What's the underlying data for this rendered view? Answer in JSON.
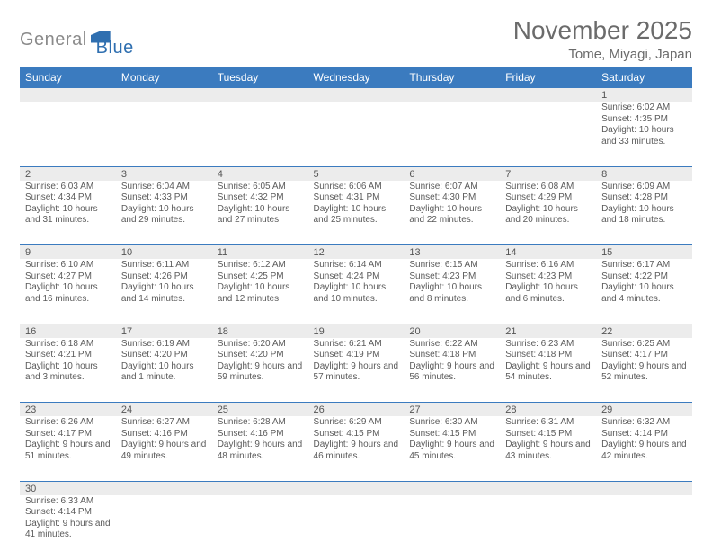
{
  "colors": {
    "accent": "#3b7bbf",
    "header_bg": "#3b7bbf",
    "header_text": "#ffffff",
    "row_alt": "#ececec",
    "title": "#6b6b6b",
    "text": "#333333"
  },
  "logo": {
    "part1": "General",
    "part2": "Blue"
  },
  "title": "November 2025",
  "location": "Tome, Miyagi, Japan",
  "day_headers": [
    "Sunday",
    "Monday",
    "Tuesday",
    "Wednesday",
    "Thursday",
    "Friday",
    "Saturday"
  ],
  "weeks": [
    [
      {
        "n": "",
        "empty": true
      },
      {
        "n": "",
        "empty": true
      },
      {
        "n": "",
        "empty": true
      },
      {
        "n": "",
        "empty": true
      },
      {
        "n": "",
        "empty": true
      },
      {
        "n": "",
        "empty": true
      },
      {
        "n": "1",
        "sunrise": "Sunrise: 6:02 AM",
        "sunset": "Sunset: 4:35 PM",
        "daylight": "Daylight: 10 hours and 33 minutes."
      }
    ],
    [
      {
        "n": "2",
        "sunrise": "Sunrise: 6:03 AM",
        "sunset": "Sunset: 4:34 PM",
        "daylight": "Daylight: 10 hours and 31 minutes."
      },
      {
        "n": "3",
        "sunrise": "Sunrise: 6:04 AM",
        "sunset": "Sunset: 4:33 PM",
        "daylight": "Daylight: 10 hours and 29 minutes."
      },
      {
        "n": "4",
        "sunrise": "Sunrise: 6:05 AM",
        "sunset": "Sunset: 4:32 PM",
        "daylight": "Daylight: 10 hours and 27 minutes."
      },
      {
        "n": "5",
        "sunrise": "Sunrise: 6:06 AM",
        "sunset": "Sunset: 4:31 PM",
        "daylight": "Daylight: 10 hours and 25 minutes."
      },
      {
        "n": "6",
        "sunrise": "Sunrise: 6:07 AM",
        "sunset": "Sunset: 4:30 PM",
        "daylight": "Daylight: 10 hours and 22 minutes."
      },
      {
        "n": "7",
        "sunrise": "Sunrise: 6:08 AM",
        "sunset": "Sunset: 4:29 PM",
        "daylight": "Daylight: 10 hours and 20 minutes."
      },
      {
        "n": "8",
        "sunrise": "Sunrise: 6:09 AM",
        "sunset": "Sunset: 4:28 PM",
        "daylight": "Daylight: 10 hours and 18 minutes."
      }
    ],
    [
      {
        "n": "9",
        "sunrise": "Sunrise: 6:10 AM",
        "sunset": "Sunset: 4:27 PM",
        "daylight": "Daylight: 10 hours and 16 minutes."
      },
      {
        "n": "10",
        "sunrise": "Sunrise: 6:11 AM",
        "sunset": "Sunset: 4:26 PM",
        "daylight": "Daylight: 10 hours and 14 minutes."
      },
      {
        "n": "11",
        "sunrise": "Sunrise: 6:12 AM",
        "sunset": "Sunset: 4:25 PM",
        "daylight": "Daylight: 10 hours and 12 minutes."
      },
      {
        "n": "12",
        "sunrise": "Sunrise: 6:14 AM",
        "sunset": "Sunset: 4:24 PM",
        "daylight": "Daylight: 10 hours and 10 minutes."
      },
      {
        "n": "13",
        "sunrise": "Sunrise: 6:15 AM",
        "sunset": "Sunset: 4:23 PM",
        "daylight": "Daylight: 10 hours and 8 minutes."
      },
      {
        "n": "14",
        "sunrise": "Sunrise: 6:16 AM",
        "sunset": "Sunset: 4:23 PM",
        "daylight": "Daylight: 10 hours and 6 minutes."
      },
      {
        "n": "15",
        "sunrise": "Sunrise: 6:17 AM",
        "sunset": "Sunset: 4:22 PM",
        "daylight": "Daylight: 10 hours and 4 minutes."
      }
    ],
    [
      {
        "n": "16",
        "sunrise": "Sunrise: 6:18 AM",
        "sunset": "Sunset: 4:21 PM",
        "daylight": "Daylight: 10 hours and 3 minutes."
      },
      {
        "n": "17",
        "sunrise": "Sunrise: 6:19 AM",
        "sunset": "Sunset: 4:20 PM",
        "daylight": "Daylight: 10 hours and 1 minute."
      },
      {
        "n": "18",
        "sunrise": "Sunrise: 6:20 AM",
        "sunset": "Sunset: 4:20 PM",
        "daylight": "Daylight: 9 hours and 59 minutes."
      },
      {
        "n": "19",
        "sunrise": "Sunrise: 6:21 AM",
        "sunset": "Sunset: 4:19 PM",
        "daylight": "Daylight: 9 hours and 57 minutes."
      },
      {
        "n": "20",
        "sunrise": "Sunrise: 6:22 AM",
        "sunset": "Sunset: 4:18 PM",
        "daylight": "Daylight: 9 hours and 56 minutes."
      },
      {
        "n": "21",
        "sunrise": "Sunrise: 6:23 AM",
        "sunset": "Sunset: 4:18 PM",
        "daylight": "Daylight: 9 hours and 54 minutes."
      },
      {
        "n": "22",
        "sunrise": "Sunrise: 6:25 AM",
        "sunset": "Sunset: 4:17 PM",
        "daylight": "Daylight: 9 hours and 52 minutes."
      }
    ],
    [
      {
        "n": "23",
        "sunrise": "Sunrise: 6:26 AM",
        "sunset": "Sunset: 4:17 PM",
        "daylight": "Daylight: 9 hours and 51 minutes."
      },
      {
        "n": "24",
        "sunrise": "Sunrise: 6:27 AM",
        "sunset": "Sunset: 4:16 PM",
        "daylight": "Daylight: 9 hours and 49 minutes."
      },
      {
        "n": "25",
        "sunrise": "Sunrise: 6:28 AM",
        "sunset": "Sunset: 4:16 PM",
        "daylight": "Daylight: 9 hours and 48 minutes."
      },
      {
        "n": "26",
        "sunrise": "Sunrise: 6:29 AM",
        "sunset": "Sunset: 4:15 PM",
        "daylight": "Daylight: 9 hours and 46 minutes."
      },
      {
        "n": "27",
        "sunrise": "Sunrise: 6:30 AM",
        "sunset": "Sunset: 4:15 PM",
        "daylight": "Daylight: 9 hours and 45 minutes."
      },
      {
        "n": "28",
        "sunrise": "Sunrise: 6:31 AM",
        "sunset": "Sunset: 4:15 PM",
        "daylight": "Daylight: 9 hours and 43 minutes."
      },
      {
        "n": "29",
        "sunrise": "Sunrise: 6:32 AM",
        "sunset": "Sunset: 4:14 PM",
        "daylight": "Daylight: 9 hours and 42 minutes."
      }
    ],
    [
      {
        "n": "30",
        "sunrise": "Sunrise: 6:33 AM",
        "sunset": "Sunset: 4:14 PM",
        "daylight": "Daylight: 9 hours and 41 minutes."
      },
      {
        "n": "",
        "empty": true
      },
      {
        "n": "",
        "empty": true
      },
      {
        "n": "",
        "empty": true
      },
      {
        "n": "",
        "empty": true
      },
      {
        "n": "",
        "empty": true
      },
      {
        "n": "",
        "empty": true
      }
    ]
  ]
}
